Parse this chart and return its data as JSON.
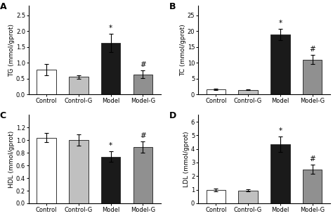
{
  "panels": [
    {
      "label": "A",
      "ylabel": "TG (mmol/gprot)",
      "ylim": [
        0,
        2.8
      ],
      "yticks": [
        0,
        0.5,
        1.0,
        1.5,
        2.0,
        2.5
      ],
      "values": [
        0.78,
        0.55,
        1.63,
        0.63
      ],
      "errors": [
        0.18,
        0.06,
        0.28,
        0.12
      ],
      "sig_labels": [
        "",
        "",
        "*",
        "#"
      ],
      "categories": [
        "Control",
        "Control-G",
        "Model",
        "Model-G"
      ]
    },
    {
      "label": "B",
      "ylabel": "TC (mmol/gprot)",
      "ylim": [
        0,
        28
      ],
      "yticks": [
        0,
        5,
        10,
        15,
        20,
        25
      ],
      "values": [
        1.5,
        1.4,
        19.0,
        11.0
      ],
      "errors": [
        0.25,
        0.15,
        1.8,
        1.5
      ],
      "sig_labels": [
        "",
        "",
        "*",
        "#"
      ],
      "categories": [
        "Control",
        "Control-G",
        "Model",
        "Model-G"
      ]
    },
    {
      "label": "C",
      "ylabel": "HDL (mmol/gprot)",
      "ylim": [
        0,
        1.4
      ],
      "yticks": [
        0,
        0.2,
        0.4,
        0.6,
        0.8,
        1.0,
        1.2
      ],
      "values": [
        1.04,
        1.0,
        0.74,
        0.89
      ],
      "errors": [
        0.07,
        0.09,
        0.08,
        0.09
      ],
      "sig_labels": [
        "",
        "",
        "*",
        "#"
      ],
      "categories": [
        "Control",
        "Control-G",
        "Model",
        "Model-G"
      ]
    },
    {
      "label": "D",
      "ylabel": "LDL (mmol/gprot)",
      "ylim": [
        0,
        6.5
      ],
      "yticks": [
        0,
        1,
        2,
        3,
        4,
        5,
        6
      ],
      "values": [
        1.0,
        0.95,
        4.35,
        2.5
      ],
      "errors": [
        0.1,
        0.06,
        0.55,
        0.35
      ],
      "sig_labels": [
        "",
        "",
        "*",
        "#"
      ],
      "categories": [
        "Control",
        "Control-G",
        "Model",
        "Model-G"
      ]
    }
  ],
  "background_color": "#f0f0f0",
  "fontsize_label": 6.5,
  "fontsize_tick": 6,
  "fontsize_panel": 9,
  "fontsize_sig": 7.5
}
